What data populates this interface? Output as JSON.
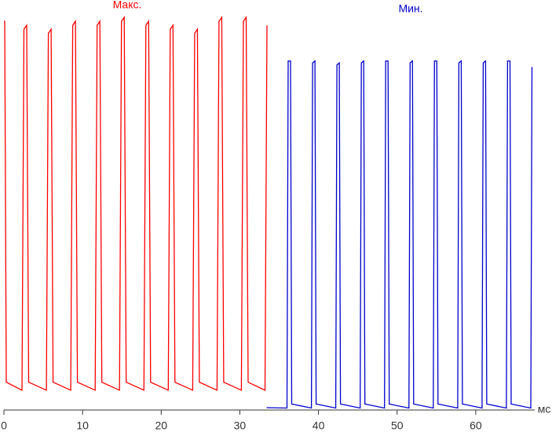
{
  "chart_data": {
    "type": "line",
    "x_label": "мс",
    "xlim": [
      0,
      67.5
    ],
    "xticks": [
      0,
      10,
      20,
      30,
      40,
      50,
      60
    ],
    "ylim": [
      0,
      100
    ],
    "series": [
      {
        "name": "Макс.",
        "color": "#ff0000",
        "x": [
          0,
          0.1,
          0.3,
          2.3,
          2.55,
          2.9,
          3.15,
          5.4,
          5.65,
          6.0,
          6.25,
          8.5,
          8.75,
          9.1,
          9.35,
          11.6,
          11.85,
          12.2,
          12.45,
          14.7,
          14.95,
          15.3,
          15.55,
          17.8,
          18.05,
          18.4,
          18.65,
          20.9,
          21.15,
          21.5,
          21.75,
          24.0,
          24.25,
          24.6,
          24.85,
          27.1,
          27.35,
          27.7,
          27.95,
          30.2,
          30.45,
          30.8,
          31.05,
          33.2,
          33.45
        ],
        "values": [
          98,
          98,
          7,
          5,
          96,
          97,
          7,
          5,
          95,
          96,
          7,
          5,
          97,
          98,
          7,
          5,
          97,
          98,
          7,
          5,
          98,
          99,
          7,
          5,
          97,
          98,
          7,
          5,
          96,
          97,
          7,
          5,
          95,
          96,
          7,
          5,
          98,
          99,
          7,
          5,
          98,
          99,
          7,
          5,
          97
        ]
      },
      {
        "name": "Мин.",
        "color": "#0000cc",
        "x": [
          33.4,
          36.0,
          36.15,
          36.45,
          36.6,
          39.1,
          39.25,
          39.55,
          39.7,
          42.2,
          42.35,
          42.65,
          42.8,
          45.3,
          45.45,
          45.75,
          45.9,
          48.4,
          48.55,
          48.85,
          49.0,
          51.5,
          51.65,
          51.95,
          52.1,
          54.6,
          54.75,
          55.05,
          55.2,
          57.7,
          57.85,
          58.15,
          58.3,
          60.8,
          60.95,
          61.25,
          61.4,
          63.9,
          64.05,
          64.35,
          64.5,
          67.0,
          67.15
        ],
        "values": [
          0.6,
          0.5,
          88,
          88,
          1.5,
          0.5,
          87.5,
          88,
          1.5,
          0.5,
          87,
          87.5,
          1.5,
          0.5,
          87.5,
          88,
          1.5,
          0.5,
          88,
          88,
          1.5,
          0.5,
          87.5,
          88,
          1.5,
          0.5,
          88,
          88,
          1.5,
          0.5,
          87.5,
          88,
          1.5,
          0.5,
          87.5,
          88,
          1.5,
          0.5,
          88,
          88,
          1.5,
          0.5,
          86.5
        ]
      }
    ]
  }
}
